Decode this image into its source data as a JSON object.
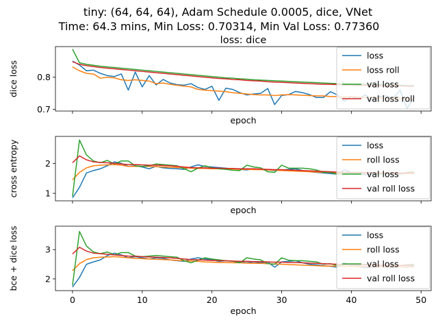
{
  "figure": {
    "title_lines": [
      "tiny: (64, 64, 64), Adam Schedule 0.0005, dice, VNet",
      "Time: 64.3 mins, Min Loss: 0.70314, Min Val Loss: 0.77360"
    ]
  },
  "colors": {
    "blue": "#1f77b4",
    "orange": "#ff7f0e",
    "green": "#2ca02c",
    "red": "#d62728"
  },
  "chart_data": [
    {
      "type": "line",
      "title": "loss: dice",
      "xlabel": "epoch",
      "ylabel": "dice loss",
      "xlim": [
        -2.45,
        51.45
      ],
      "ylim": [
        0.695,
        0.895
      ],
      "yticks": [
        0.7,
        0.8
      ],
      "ytick_labels": [
        "0.7",
        "0.8"
      ],
      "xticks": [
        0,
        10,
        20,
        30,
        40,
        50
      ],
      "xtick_labels": [],
      "legend_position": "top-right",
      "series": [
        {
          "name": "loss",
          "color": "blue",
          "values": [
            0.85,
            0.838,
            0.82,
            0.822,
            0.812,
            0.805,
            0.802,
            0.81,
            0.76,
            0.816,
            0.77,
            0.805,
            0.776,
            0.793,
            0.782,
            0.777,
            0.775,
            0.78,
            0.768,
            0.762,
            0.772,
            0.728,
            0.766,
            0.762,
            0.752,
            0.745,
            0.748,
            0.75,
            0.765,
            0.715,
            0.743,
            0.746,
            0.756,
            0.752,
            0.746,
            0.737,
            0.737,
            0.755,
            0.745,
            0.725,
            0.74,
            0.733,
            0.745,
            0.728,
            0.74,
            0.742,
            0.735,
            0.76,
            0.703,
            0.738
          ]
        },
        {
          "name": "loss roll",
          "color": "orange",
          "values": [
            0.832,
            0.82,
            0.812,
            0.81,
            0.797,
            0.8,
            0.798,
            0.792,
            0.79,
            0.792,
            0.79,
            0.788,
            0.78,
            0.782,
            0.778,
            0.775,
            0.772,
            0.77,
            0.762,
            0.76,
            0.758,
            0.757,
            0.755,
            0.752,
            0.75,
            0.748,
            0.746,
            0.745,
            0.745,
            0.743,
            0.745,
            0.746,
            0.745,
            0.744,
            0.743,
            0.742,
            0.742,
            0.74,
            0.74,
            0.738,
            0.74,
            0.738,
            0.737,
            0.736,
            0.736,
            0.735,
            0.735,
            0.734,
            0.733,
            0.732
          ]
        },
        {
          "name": "val loss",
          "color": "green",
          "values": [
            0.887,
            0.845,
            0.84,
            0.837,
            0.834,
            0.832,
            0.83,
            0.828,
            0.826,
            0.824,
            0.822,
            0.82,
            0.818,
            0.816,
            0.814,
            0.812,
            0.81,
            0.808,
            0.806,
            0.804,
            0.802,
            0.8,
            0.798,
            0.797,
            0.795,
            0.794,
            0.792,
            0.791,
            0.79,
            0.789,
            0.788,
            0.787,
            0.786,
            0.785,
            0.784,
            0.783,
            0.782,
            0.781,
            0.78,
            0.78,
            0.779,
            0.779,
            0.778,
            0.778,
            0.777,
            0.776,
            0.776,
            0.775,
            0.774,
            0.774
          ]
        },
        {
          "name": "val loss roll",
          "color": "red",
          "values": [
            0.848,
            0.84,
            0.836,
            0.833,
            0.83,
            0.828,
            0.826,
            0.824,
            0.822,
            0.82,
            0.818,
            0.816,
            0.814,
            0.812,
            0.81,
            0.808,
            0.806,
            0.804,
            0.802,
            0.8,
            0.798,
            0.796,
            0.795,
            0.793,
            0.792,
            0.79,
            0.789,
            0.788,
            0.786,
            0.785,
            0.784,
            0.783,
            0.782,
            0.781,
            0.78,
            0.779,
            0.778,
            0.778,
            0.777,
            0.776,
            0.776,
            0.775,
            0.775,
            0.774,
            0.774,
            0.773,
            0.773,
            0.773,
            0.772,
            0.772
          ]
        }
      ]
    },
    {
      "type": "line",
      "title": "",
      "xlabel": "epoch",
      "ylabel": "cross entropy",
      "xlim": [
        -2.45,
        51.45
      ],
      "ylim": [
        0.75,
        2.9
      ],
      "yticks": [
        1,
        2
      ],
      "ytick_labels": [
        "1",
        "2"
      ],
      "xticks": [
        0,
        10,
        20,
        30,
        40,
        50
      ],
      "xtick_labels": [],
      "legend_position": "top-right",
      "series": [
        {
          "name": "loss",
          "color": "blue",
          "values": [
            0.85,
            1.2,
            1.68,
            1.76,
            1.82,
            1.92,
            2.05,
            2.0,
            1.9,
            1.92,
            1.88,
            1.82,
            1.9,
            1.85,
            1.83,
            1.82,
            1.8,
            1.88,
            1.95,
            1.9,
            1.88,
            1.86,
            1.84,
            1.82,
            1.8,
            1.78,
            1.82,
            1.8,
            1.78,
            1.76,
            1.78,
            1.8,
            1.82,
            1.76,
            1.72,
            1.7,
            1.68,
            1.66,
            1.64,
            1.78,
            1.7,
            1.66,
            1.62,
            1.64,
            1.66,
            1.64,
            1.62,
            1.65,
            1.66,
            1.68
          ]
        },
        {
          "name": "roll loss",
          "color": "orange",
          "values": [
            1.45,
            1.7,
            1.85,
            1.92,
            1.94,
            1.95,
            1.96,
            1.94,
            1.9,
            1.9,
            1.9,
            1.9,
            1.89,
            1.88,
            1.87,
            1.86,
            1.85,
            1.84,
            1.83,
            1.83,
            1.82,
            1.82,
            1.81,
            1.81,
            1.8,
            1.8,
            1.79,
            1.79,
            1.78,
            1.77,
            1.76,
            1.75,
            1.74,
            1.73,
            1.72,
            1.71,
            1.7,
            1.69,
            1.68,
            1.68,
            1.68,
            1.67,
            1.67,
            1.67,
            1.66,
            1.66,
            1.66,
            1.66,
            1.66,
            1.66
          ]
        },
        {
          "name": "val loss",
          "color": "green",
          "values": [
            0.9,
            2.78,
            2.28,
            2.08,
            2.02,
            2.1,
            1.98,
            2.08,
            2.08,
            1.92,
            1.9,
            1.92,
            1.98,
            1.96,
            1.94,
            1.92,
            1.82,
            1.72,
            1.84,
            1.92,
            1.85,
            1.82,
            1.8,
            1.77,
            1.76,
            1.94,
            1.88,
            1.85,
            1.72,
            1.7,
            1.94,
            1.84,
            1.84,
            1.84,
            1.82,
            1.78,
            1.7,
            1.7,
            1.64,
            1.66,
            1.68,
            1.66,
            1.7,
            1.68,
            1.64,
            1.66,
            1.7,
            1.66,
            1.7,
            1.72
          ]
        },
        {
          "name": "val roll loss",
          "color": "red",
          "values": [
            2.02,
            2.25,
            2.12,
            2.05,
            2.03,
            2.02,
            2.0,
            1.98,
            1.96,
            1.96,
            1.95,
            1.94,
            1.94,
            1.93,
            1.92,
            1.9,
            1.88,
            1.86,
            1.85,
            1.85,
            1.84,
            1.84,
            1.83,
            1.83,
            1.82,
            1.82,
            1.82,
            1.81,
            1.8,
            1.79,
            1.79,
            1.78,
            1.77,
            1.76,
            1.75,
            1.74,
            1.73,
            1.72,
            1.71,
            1.7,
            1.7,
            1.7,
            1.69,
            1.69,
            1.68,
            1.68,
            1.68,
            1.68,
            1.68,
            1.68
          ]
        }
      ]
    },
    {
      "type": "line",
      "title": "",
      "xlabel": "epoch",
      "ylabel": "bce + dice loss",
      "xlim": [
        -2.45,
        51.45
      ],
      "ylim": [
        1.6,
        3.8
      ],
      "yticks": [
        2,
        3
      ],
      "ytick_labels": [
        "2",
        "3"
      ],
      "xticks": [
        0,
        10,
        20,
        30,
        40,
        50
      ],
      "xtick_labels": [
        "0",
        "10",
        "20",
        "30",
        "40",
        "50"
      ],
      "legend_position": "top-right",
      "series": [
        {
          "name": "loss",
          "color": "blue",
          "values": [
            1.72,
            2.05,
            2.5,
            2.58,
            2.65,
            2.8,
            2.88,
            2.82,
            2.72,
            2.76,
            2.72,
            2.68,
            2.72,
            2.7,
            2.65,
            2.62,
            2.6,
            2.68,
            2.72,
            2.68,
            2.65,
            2.6,
            2.62,
            2.6,
            2.58,
            2.55,
            2.58,
            2.55,
            2.58,
            2.4,
            2.58,
            2.6,
            2.62,
            2.55,
            2.5,
            2.48,
            2.45,
            2.43,
            2.4,
            2.55,
            2.45,
            2.42,
            2.38,
            2.4,
            2.42,
            2.4,
            2.38,
            2.42,
            2.4,
            2.45
          ]
        },
        {
          "name": "roll loss",
          "color": "orange",
          "values": [
            2.28,
            2.52,
            2.66,
            2.72,
            2.74,
            2.75,
            2.76,
            2.74,
            2.72,
            2.7,
            2.69,
            2.68,
            2.67,
            2.66,
            2.65,
            2.63,
            2.62,
            2.61,
            2.6,
            2.58,
            2.57,
            2.56,
            2.56,
            2.55,
            2.55,
            2.54,
            2.53,
            2.53,
            2.52,
            2.51,
            2.5,
            2.49,
            2.48,
            2.47,
            2.46,
            2.45,
            2.44,
            2.44,
            2.43,
            2.43,
            2.43,
            2.42,
            2.42,
            2.42,
            2.42,
            2.41,
            2.41,
            2.41,
            2.41,
            2.41
          ]
        },
        {
          "name": "val loss",
          "color": "green",
          "values": [
            1.78,
            3.62,
            3.12,
            2.92,
            2.86,
            2.92,
            2.82,
            2.9,
            2.9,
            2.78,
            2.76,
            2.78,
            2.8,
            2.78,
            2.76,
            2.74,
            2.62,
            2.55,
            2.64,
            2.72,
            2.68,
            2.65,
            2.62,
            2.6,
            2.55,
            2.72,
            2.68,
            2.65,
            2.52,
            2.5,
            2.72,
            2.64,
            2.62,
            2.62,
            2.6,
            2.58,
            2.5,
            2.52,
            2.45,
            2.48,
            2.5,
            2.46,
            2.5,
            2.48,
            2.45,
            2.47,
            2.5,
            2.46,
            2.48,
            2.5
          ]
        },
        {
          "name": "val roll loss",
          "color": "red",
          "values": [
            2.85,
            3.08,
            2.95,
            2.88,
            2.86,
            2.84,
            2.82,
            2.8,
            2.78,
            2.77,
            2.76,
            2.75,
            2.74,
            2.73,
            2.72,
            2.7,
            2.68,
            2.66,
            2.65,
            2.64,
            2.63,
            2.62,
            2.62,
            2.61,
            2.6,
            2.6,
            2.59,
            2.59,
            2.58,
            2.57,
            2.57,
            2.56,
            2.56,
            2.55,
            2.54,
            2.53,
            2.52,
            2.51,
            2.5,
            2.49,
            2.49,
            2.48,
            2.48,
            2.47,
            2.47,
            2.47,
            2.46,
            2.46,
            2.46,
            2.46
          ]
        }
      ]
    }
  ]
}
